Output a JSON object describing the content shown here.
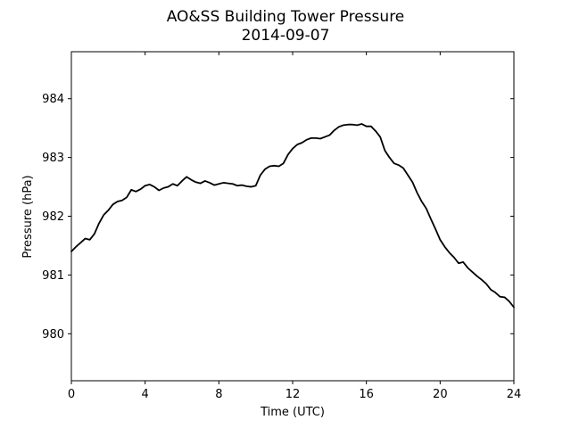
{
  "chart_data": {
    "type": "line",
    "title": "AO&SS Building Tower Pressure",
    "subtitle": "2014-09-07",
    "xlabel": "Time (UTC)",
    "ylabel": "Pressure (hPa)",
    "xlim": [
      0,
      24
    ],
    "ylim": [
      979.2,
      984.8
    ],
    "xticks": [
      0,
      4,
      8,
      12,
      16,
      20,
      24
    ],
    "xtick_labels": [
      "0",
      "4",
      "8",
      "12",
      "16",
      "20",
      "24"
    ],
    "yticks": [
      980,
      981,
      982,
      983,
      984
    ],
    "ytick_labels": [
      "980",
      "981",
      "982",
      "983",
      "984"
    ],
    "grid": false,
    "legend": "none",
    "series": [
      {
        "color": "#000000",
        "x": [
          0.0,
          0.25,
          0.5,
          0.75,
          1.0,
          1.25,
          1.5,
          1.75,
          2.0,
          2.25,
          2.5,
          2.75,
          3.0,
          3.25,
          3.5,
          3.75,
          4.0,
          4.25,
          4.5,
          4.75,
          5.0,
          5.25,
          5.5,
          5.75,
          6.0,
          6.25,
          6.5,
          6.75,
          7.0,
          7.25,
          7.5,
          7.75,
          8.0,
          8.25,
          8.5,
          8.75,
          9.0,
          9.25,
          9.5,
          9.75,
          10.0,
          10.25,
          10.5,
          10.75,
          11.0,
          11.25,
          11.5,
          11.75,
          12.0,
          12.25,
          12.5,
          12.75,
          13.0,
          13.25,
          13.5,
          13.75,
          14.0,
          14.25,
          14.5,
          14.75,
          15.0,
          15.25,
          15.5,
          15.75,
          16.0,
          16.25,
          16.5,
          16.75,
          17.0,
          17.25,
          17.5,
          17.75,
          18.0,
          18.25,
          18.5,
          18.75,
          19.0,
          19.25,
          19.5,
          19.75,
          20.0,
          20.25,
          20.5,
          20.75,
          21.0,
          21.25,
          21.5,
          21.75,
          22.0,
          22.25,
          22.5,
          22.75,
          23.0,
          23.25,
          23.5,
          23.75,
          24.0
        ],
        "values": [
          981.4,
          981.48,
          981.55,
          981.62,
          981.6,
          981.7,
          981.88,
          982.02,
          982.1,
          982.2,
          982.25,
          982.27,
          982.32,
          982.45,
          982.42,
          982.46,
          982.52,
          982.54,
          982.5,
          982.44,
          982.48,
          982.5,
          982.55,
          982.52,
          982.6,
          982.67,
          982.62,
          982.58,
          982.56,
          982.6,
          982.57,
          982.53,
          982.55,
          982.57,
          982.56,
          982.55,
          982.52,
          982.53,
          982.51,
          982.5,
          982.52,
          982.7,
          982.8,
          982.85,
          982.86,
          982.85,
          982.9,
          983.05,
          983.15,
          983.22,
          983.25,
          983.3,
          983.33,
          983.33,
          983.32,
          983.35,
          983.38,
          983.46,
          983.52,
          983.55,
          983.56,
          983.56,
          983.55,
          983.57,
          983.53,
          983.53,
          983.45,
          983.35,
          983.12,
          983.0,
          982.9,
          982.87,
          982.82,
          982.7,
          982.58,
          982.4,
          982.25,
          982.13,
          981.95,
          981.78,
          981.6,
          981.48,
          981.38,
          981.3,
          981.2,
          981.22,
          981.12,
          981.05,
          980.98,
          980.92,
          980.85,
          980.75,
          980.7,
          980.63,
          980.62,
          980.55,
          980.45
        ]
      }
    ]
  }
}
